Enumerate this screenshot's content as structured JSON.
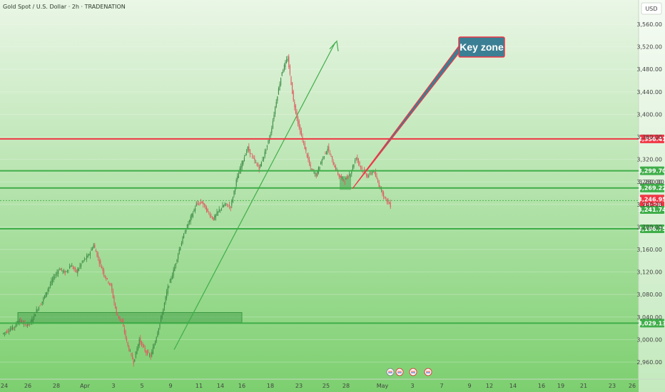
{
  "header": {
    "symbol_title": "Gold Spot / U.S. Dollar · 2h · TRADENATION",
    "currency": "USD"
  },
  "colors": {
    "bg_top": "#eaf6e6",
    "bg_bottom": "#7ccf6f",
    "bull": "#3d8c46",
    "bear": "#e0585f",
    "resistance": "#f23645",
    "support": "#3fae49",
    "callout_fill": "#3b7f94",
    "callout_border": "#f23645"
  },
  "chart_data": {
    "type": "candlestick",
    "title": "Gold Spot / U.S. Dollar · 2h · TRADENATION",
    "ylim": [
      2940,
      3580
    ],
    "yticks": [
      2960,
      3000,
      3040,
      3080,
      3120,
      3160,
      3200,
      3240,
      3280,
      3320,
      3360,
      3400,
      3440,
      3480,
      3520,
      3560
    ],
    "ytick_labels": [
      "2,960.00",
      "3,000.00",
      "3,040.00",
      "3,080.00",
      "3,120.00",
      "3,160.00",
      "3,200.00",
      "3,240.00",
      "3,280.00",
      "3,320.00",
      "3,360.00",
      "3,400.00",
      "3,440.00",
      "3,480.00",
      "3,520.00",
      "3,560.00"
    ],
    "xtick_labels": [
      "24",
      "26",
      "28",
      "Apr",
      "3",
      "5",
      "9",
      "11",
      "14",
      "16",
      "18",
      "23",
      "25",
      "28",
      "May",
      "3",
      "7",
      "9",
      "12",
      "14",
      "16",
      "19",
      "21",
      "23",
      "26"
    ],
    "price_path": [
      [
        3010,
        3016
      ],
      [
        3016,
        3022
      ],
      [
        3022,
        3034
      ],
      [
        3034,
        3026
      ],
      [
        3026,
        3030
      ],
      [
        3030,
        3052
      ],
      [
        3052,
        3068
      ],
      [
        3068,
        3090
      ],
      [
        3090,
        3110
      ],
      [
        3110,
        3126
      ],
      [
        3126,
        3118
      ],
      [
        3118,
        3132
      ],
      [
        3132,
        3120
      ],
      [
        3120,
        3138
      ],
      [
        3138,
        3148
      ],
      [
        3148,
        3168
      ],
      [
        3168,
        3138
      ],
      [
        3138,
        3112
      ],
      [
        3112,
        3096
      ],
      [
        3096,
        3046
      ],
      [
        3046,
        3030
      ],
      [
        3030,
        2988
      ],
      [
        2988,
        2960
      ],
      [
        2960,
        3000
      ],
      [
        3000,
        2980
      ],
      [
        2980,
        2970
      ],
      [
        2970,
        3006
      ],
      [
        3006,
        3046
      ],
      [
        3046,
        3092
      ],
      [
        3092,
        3122
      ],
      [
        3122,
        3160
      ],
      [
        3160,
        3192
      ],
      [
        3192,
        3216
      ],
      [
        3216,
        3240
      ],
      [
        3240,
        3244
      ],
      [
        3244,
        3226
      ],
      [
        3226,
        3214
      ],
      [
        3214,
        3230
      ],
      [
        3230,
        3240
      ],
      [
        3240,
        3236
      ],
      [
        3236,
        3282
      ],
      [
        3282,
        3314
      ],
      [
        3314,
        3340
      ],
      [
        3340,
        3320
      ],
      [
        3320,
        3304
      ],
      [
        3304,
        3332
      ],
      [
        3332,
        3366
      ],
      [
        3366,
        3424
      ],
      [
        3424,
        3476
      ],
      [
        3476,
        3500
      ],
      [
        3500,
        3424
      ],
      [
        3424,
        3376
      ],
      [
        3376,
        3340
      ],
      [
        3340,
        3304
      ],
      [
        3304,
        3292
      ],
      [
        3292,
        3320
      ],
      [
        3320,
        3340
      ],
      [
        3340,
        3312
      ],
      [
        3312,
        3290
      ],
      [
        3290,
        3282
      ],
      [
        3282,
        3296
      ],
      [
        3296,
        3324
      ],
      [
        3324,
        3302
      ],
      [
        3302,
        3290
      ],
      [
        3290,
        3300
      ],
      [
        3300,
        3274
      ],
      [
        3274,
        3252
      ],
      [
        3252,
        3238
      ]
    ],
    "horizontal_levels": [
      {
        "price": 3356.41,
        "label": "3,356.41",
        "kind": "resistance"
      },
      {
        "price": 3299.7,
        "label": "3,299.70",
        "kind": "support"
      },
      {
        "price": 3269.22,
        "label": "3,269.22",
        "kind": "support"
      },
      {
        "price": 3196.75,
        "label": "3,196.75",
        "kind": "support"
      },
      {
        "price": 3029.13,
        "label": "3,029.13",
        "kind": "support"
      }
    ],
    "last_price": {
      "label": "3,246.95",
      "time": "19:26"
    },
    "second_price": {
      "label": "3,241.74"
    },
    "small_price": {
      "label": "3,280.00"
    },
    "annotation": {
      "label": "Key zone"
    }
  }
}
